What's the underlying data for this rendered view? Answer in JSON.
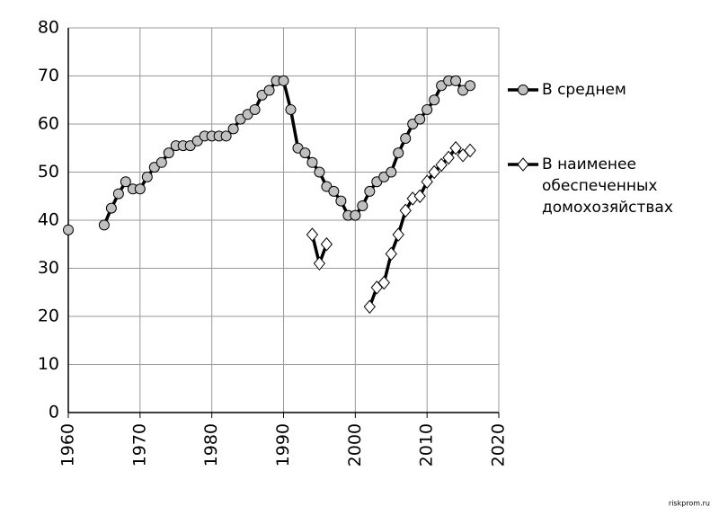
{
  "chart_data": {
    "type": "line",
    "x": [
      1960,
      1961,
      1962,
      1963,
      1964,
      1965,
      1966,
      1967,
      1968,
      1969,
      1970,
      1971,
      1972,
      1973,
      1974,
      1975,
      1976,
      1977,
      1978,
      1979,
      1980,
      1981,
      1982,
      1983,
      1984,
      1985,
      1986,
      1987,
      1988,
      1989,
      1990,
      1991,
      1992,
      1993,
      1994,
      1995,
      1996,
      1997,
      1998,
      1999,
      2000,
      2001,
      2002,
      2003,
      2004,
      2005,
      2006,
      2007,
      2008,
      2009,
      2010,
      2011,
      2012,
      2013,
      2014,
      2015,
      2016
    ],
    "series": [
      {
        "name": "В среднем",
        "color": "#000000",
        "marker": "circle",
        "marker_color": "#c0c0c0",
        "values": [
          38,
          null,
          null,
          null,
          null,
          39,
          42.5,
          45.5,
          48,
          46.5,
          46.5,
          49,
          51,
          52,
          54,
          55.5,
          55.5,
          55.5,
          56.5,
          57.5,
          57.5,
          57.5,
          57.5,
          59,
          61,
          62,
          63,
          66,
          67,
          69,
          69,
          63,
          55,
          54,
          52,
          50,
          47,
          46,
          44,
          41,
          41,
          43,
          46,
          48,
          49,
          50,
          54,
          57,
          60,
          61,
          63,
          65,
          68,
          69,
          69,
          67,
          68
        ]
      },
      {
        "name": "В наименее обеспеченных домохозяйствах",
        "color": "#000000",
        "marker": "diamond",
        "marker_color": "#ffffff",
        "values": [
          null,
          null,
          null,
          null,
          null,
          null,
          null,
          null,
          null,
          null,
          null,
          null,
          null,
          null,
          null,
          null,
          null,
          null,
          null,
          null,
          null,
          null,
          null,
          null,
          null,
          null,
          null,
          null,
          null,
          null,
          null,
          null,
          null,
          null,
          37,
          31,
          35,
          null,
          null,
          null,
          null,
          null,
          22,
          26,
          27,
          33,
          37,
          42,
          44.5,
          45,
          48,
          50,
          51.5,
          53,
          55,
          53.5,
          54.5
        ]
      }
    ],
    "xlim": [
      1960,
      2020
    ],
    "xticks": [
      1960,
      1970,
      1980,
      1990,
      2000,
      2010,
      2020
    ],
    "ylim": [
      0,
      80
    ],
    "yticks": [
      0,
      10,
      20,
      30,
      40,
      50,
      60,
      70,
      80
    ],
    "grid": true,
    "legend": "right",
    "source": "riskprom.ru"
  }
}
